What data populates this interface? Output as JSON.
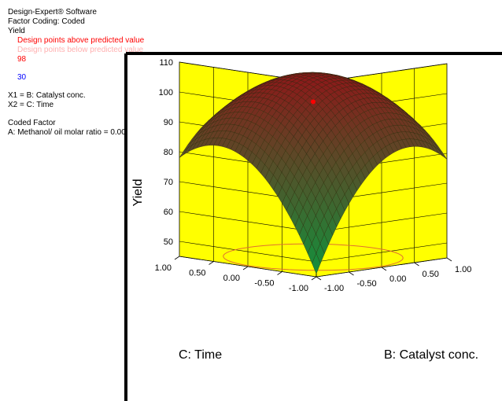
{
  "info": {
    "software": "Design-Expert® Software",
    "factor_coding": "Factor Coding: Coded",
    "response": "Yield",
    "legend_above": "Design points above predicted value",
    "legend_below": "Design points below predicted value",
    "range_high": "98",
    "range_low": "30",
    "x1": "X1 = B: Catalyst conc.",
    "x2": "X2 = C: Time",
    "coded_factor_title": "Coded Factor",
    "coded_factor_value": "A: Methanol/ oil molar ratio = 0.00"
  },
  "colors": {
    "wall": "#ffff00",
    "floor": "#ffff00",
    "above": "#ff0000",
    "below": "#ffb0b0",
    "low_text": "#0000ff",
    "surface_low": "#1a8a3a",
    "surface_high": "#8b1a1a"
  },
  "chart_data": {
    "type": "surface3d",
    "title": "",
    "xlabel": "B: Catalyst conc.",
    "ylabel": "C: Time",
    "zlabel": "Yield",
    "x_range": [
      -1,
      1
    ],
    "y_range": [
      -1,
      1
    ],
    "z_range": [
      45,
      110
    ],
    "x_ticks": [
      "-1.00",
      "-0.50",
      "0.00",
      "0.50",
      "1.00"
    ],
    "y_ticks": [
      "-1.00",
      "-0.50",
      "0.00",
      "0.50",
      "1.00"
    ],
    "z_ticks": [
      "50",
      "60",
      "70",
      "80",
      "90",
      "100",
      "110"
    ],
    "surface_corners": [
      {
        "x": -1,
        "y": 1,
        "z": 78
      },
      {
        "x": 1,
        "y": -1,
        "z": 78
      },
      {
        "x": 1,
        "y": 1,
        "z": 70
      },
      {
        "x": -1,
        "y": -1,
        "z": 46
      }
    ],
    "surface_peak": {
      "x": 0,
      "y": 0,
      "z": 105
    },
    "design_points_above": [
      {
        "x": 0,
        "y": 0,
        "z": 97
      }
    ],
    "grid": true
  }
}
